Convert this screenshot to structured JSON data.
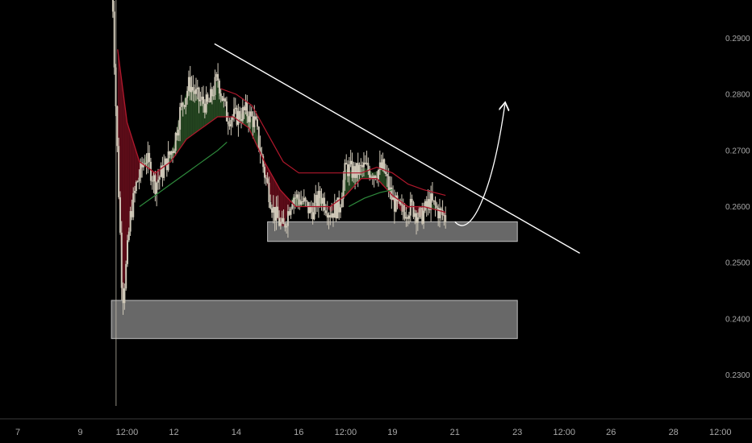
{
  "colors": {
    "background": "#000000",
    "tick_text": "#a8a8a8",
    "axis_line": "#3a3a3a",
    "candle": "#cfc8b8",
    "ema_red": "#b0182c",
    "ema_green": "#2e8a3c",
    "ribbon_red": "#7a1020",
    "ribbon_green": "#2f5a2a",
    "zone_fill": "#7a7a7a",
    "zone_stroke": "#bdbdbd",
    "trendline": "#ffffff",
    "projection": "#ffffff"
  },
  "chart_data": {
    "type": "candlestick",
    "title": "",
    "xlabel": "",
    "ylabel": "",
    "ylim": [
      0.2222,
      0.2968
    ],
    "y_ticks": [
      "0.2900",
      "0.2800",
      "0.2700",
      "0.2600",
      "0.2500",
      "0.2400",
      "0.2300"
    ],
    "x_ticks": [
      {
        "label": "7",
        "t": 7.0
      },
      {
        "label": "9",
        "t": 9.0
      },
      {
        "label": "12:00",
        "t": 10.5
      },
      {
        "label": "12",
        "t": 12.0
      },
      {
        "label": "14",
        "t": 14.0
      },
      {
        "label": "16",
        "t": 16.0
      },
      {
        "label": "12:00",
        "t": 17.5
      },
      {
        "label": "19",
        "t": 19.0
      },
      {
        "label": "21",
        "t": 21.0
      },
      {
        "label": "23",
        "t": 23.0
      },
      {
        "label": "12:00",
        "t": 24.5
      },
      {
        "label": "26",
        "t": 26.0
      },
      {
        "label": "28",
        "t": 28.0
      },
      {
        "label": "12:00",
        "t": 29.5
      }
    ],
    "price_path": [
      [
        10.0,
        0.305
      ],
      [
        10.1,
        0.285
      ],
      [
        10.2,
        0.268
      ],
      [
        10.3,
        0.252
      ],
      [
        10.35,
        0.243
      ],
      [
        10.45,
        0.248
      ],
      [
        10.6,
        0.258
      ],
      [
        10.8,
        0.264
      ],
      [
        11.1,
        0.269
      ],
      [
        11.4,
        0.264
      ],
      [
        11.7,
        0.267
      ],
      [
        12.0,
        0.271
      ],
      [
        12.2,
        0.277
      ],
      [
        12.5,
        0.282
      ],
      [
        12.8,
        0.279
      ],
      [
        13.1,
        0.278
      ],
      [
        13.4,
        0.283
      ],
      [
        13.7,
        0.276
      ],
      [
        14.0,
        0.276
      ],
      [
        14.3,
        0.277
      ],
      [
        14.6,
        0.275
      ],
      [
        14.9,
        0.266
      ],
      [
        15.2,
        0.259
      ],
      [
        15.5,
        0.256
      ],
      [
        15.8,
        0.262
      ],
      [
        16.1,
        0.261
      ],
      [
        16.4,
        0.259
      ],
      [
        16.7,
        0.262
      ],
      [
        17.0,
        0.259
      ],
      [
        17.3,
        0.26
      ],
      [
        17.5,
        0.267
      ],
      [
        17.8,
        0.266
      ],
      [
        18.1,
        0.267
      ],
      [
        18.4,
        0.266
      ],
      [
        18.7,
        0.267
      ],
      [
        19.0,
        0.261
      ],
      [
        19.3,
        0.259
      ],
      [
        19.6,
        0.26
      ],
      [
        19.9,
        0.258
      ],
      [
        20.2,
        0.261
      ],
      [
        20.5,
        0.259
      ],
      [
        20.7,
        0.258
      ]
    ],
    "ema_red": [
      [
        10.2,
        0.288
      ],
      [
        10.5,
        0.275
      ],
      [
        10.9,
        0.268
      ],
      [
        11.4,
        0.266
      ],
      [
        11.9,
        0.268
      ],
      [
        12.4,
        0.272
      ],
      [
        12.9,
        0.274
      ],
      [
        13.4,
        0.276
      ],
      [
        13.9,
        0.276
      ],
      [
        14.4,
        0.274
      ],
      [
        14.9,
        0.268
      ],
      [
        15.4,
        0.263
      ],
      [
        15.9,
        0.26
      ],
      [
        16.5,
        0.26
      ],
      [
        17.0,
        0.26
      ],
      [
        17.5,
        0.262
      ],
      [
        18.0,
        0.265
      ],
      [
        18.5,
        0.265
      ],
      [
        19.0,
        0.262
      ],
      [
        19.5,
        0.26
      ],
      [
        20.0,
        0.26
      ],
      [
        20.7,
        0.259
      ]
    ],
    "ema_red_outer": [
      [
        13.5,
        0.281
      ],
      [
        14.0,
        0.28
      ],
      [
        14.5,
        0.278
      ],
      [
        15.0,
        0.273
      ],
      [
        15.5,
        0.268
      ],
      [
        16.0,
        0.266
      ],
      [
        16.5,
        0.266
      ],
      [
        17.0,
        0.266
      ],
      [
        17.5,
        0.266
      ],
      [
        18.0,
        0.266
      ],
      [
        18.5,
        0.267
      ],
      [
        19.0,
        0.266
      ],
      [
        19.5,
        0.264
      ],
      [
        20.0,
        0.263
      ],
      [
        20.7,
        0.262
      ]
    ],
    "ema_green": [
      [
        10.9,
        0.26
      ],
      [
        11.4,
        0.262
      ],
      [
        11.9,
        0.264
      ],
      [
        12.4,
        0.266
      ],
      [
        12.9,
        0.268
      ],
      [
        13.4,
        0.27
      ],
      [
        13.7,
        0.2715
      ]
    ],
    "ema_green_2": [
      [
        17.6,
        0.26
      ],
      [
        18.1,
        0.2615
      ],
      [
        18.6,
        0.2625
      ],
      [
        19.0,
        0.263
      ]
    ],
    "zones": [
      {
        "t_start": 15.0,
        "t_end": 23.0,
        "top": 0.2573,
        "bottom": 0.2538
      },
      {
        "t_start": 10.0,
        "t_end": 23.0,
        "top": 0.2433,
        "bottom": 0.2365
      }
    ],
    "trendline": {
      "from": [
        13.3,
        0.289
      ],
      "to": [
        25.0,
        0.2517
      ]
    },
    "projection": [
      [
        21.0,
        0.2573
      ],
      [
        21.5,
        0.2573
      ],
      [
        22.2,
        0.2638
      ],
      [
        22.6,
        0.2782
      ]
    ],
    "wick_spike": {
      "t": 10.2,
      "low": 0.2245
    }
  }
}
